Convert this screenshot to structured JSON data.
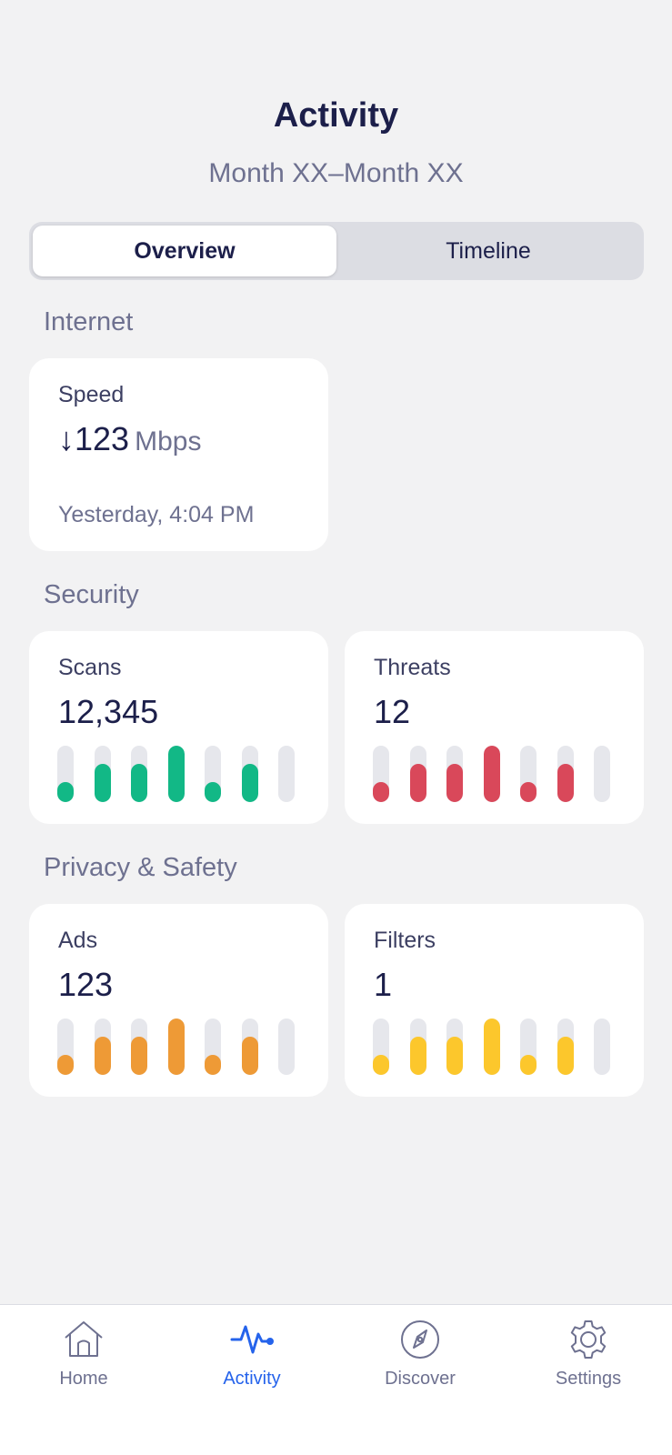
{
  "header": {
    "title": "Activity",
    "subtitle": "Month XX–Month XX"
  },
  "segmented": {
    "overview": "Overview",
    "timeline": "Timeline",
    "selected": "Overview"
  },
  "sections": {
    "internet": "Internet",
    "security": "Security",
    "privacy": "Privacy & Safety"
  },
  "cards": {
    "speed": {
      "label": "Speed",
      "arrow": "↓",
      "value": "123",
      "unit": "Mbps",
      "footnote": "Yesterday, 4:04 PM"
    },
    "scans": {
      "label": "Scans",
      "value": "12,345",
      "color": "#12b886",
      "levels": [
        0.36,
        0.68,
        0.68,
        1.0,
        0.36,
        0.68,
        0
      ]
    },
    "threats": {
      "label": "Threats",
      "value": "12",
      "color": "#d9485a",
      "levels": [
        0.36,
        0.68,
        0.68,
        1.0,
        0.36,
        0.68,
        0
      ]
    },
    "ads": {
      "label": "Ads",
      "value": "123",
      "color": "#ee9a36",
      "levels": [
        0.36,
        0.68,
        0.68,
        1.0,
        0.36,
        0.68,
        0
      ]
    },
    "filters": {
      "label": "Filters",
      "value": "1",
      "color": "#fcc72c",
      "levels": [
        0.36,
        0.68,
        0.68,
        1.0,
        0.36,
        0.68,
        0
      ]
    }
  },
  "tabbar": {
    "home": "Home",
    "activity": "Activity",
    "discover": "Discover",
    "settings": "Settings",
    "selected": "Activity",
    "accent": "#2563eb",
    "icons": [
      "home-icon",
      "activity-pulse-icon",
      "compass-icon",
      "gear-icon"
    ]
  }
}
